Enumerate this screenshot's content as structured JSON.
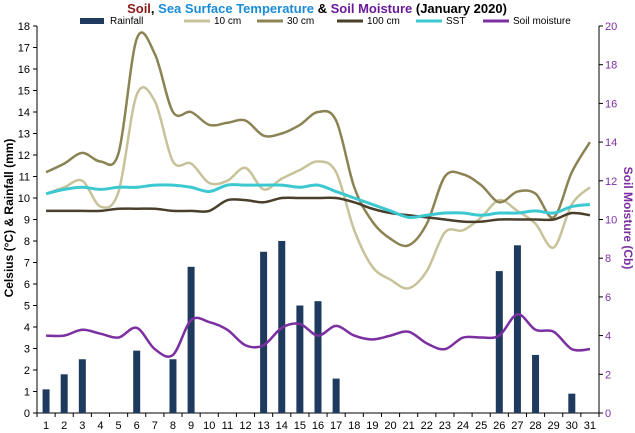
{
  "chart_data": {
    "type": "bar+line",
    "title": {
      "parts": [
        {
          "text": "Soil",
          "color": "#8b1a1a"
        },
        {
          "text": ", ",
          "color": "#000000"
        },
        {
          "text": "Sea Surface Temperature",
          "color": "#1a8cd8"
        },
        {
          "text": " & ",
          "color": "#000000"
        },
        {
          "text": "Soil Moisture",
          "color": "#6a1b9a"
        },
        {
          "text": " (January 2020)",
          "color": "#000000"
        }
      ]
    },
    "xlabel": "",
    "ylabel": "Celsius (°C) & Rainfall (mm)",
    "y2label": "Soil Moisture (Cb)",
    "x": [
      1,
      2,
      3,
      4,
      5,
      6,
      7,
      8,
      9,
      10,
      11,
      12,
      13,
      14,
      15,
      16,
      17,
      18,
      19,
      20,
      21,
      22,
      23,
      24,
      25,
      26,
      27,
      28,
      29,
      30,
      31
    ],
    "ylim": [
      0,
      18
    ],
    "y2lim": [
      0,
      20
    ],
    "yticks": [
      0,
      1,
      2,
      3,
      4,
      5,
      6,
      7,
      8,
      9,
      10,
      11,
      12,
      13,
      14,
      15,
      16,
      17,
      18
    ],
    "y2ticks": [
      0,
      2,
      4,
      6,
      8,
      10,
      12,
      14,
      16,
      18,
      20
    ],
    "grid": false,
    "legend_position": "top",
    "series": [
      {
        "name": "Rainfall",
        "kind": "bar",
        "axis": "left",
        "color": "#1f3a5f",
        "values": [
          1.1,
          1.8,
          2.5,
          0,
          0,
          2.9,
          0,
          2.5,
          6.8,
          0,
          0,
          0,
          7.5,
          8.0,
          5.0,
          5.2,
          1.6,
          0,
          0,
          0,
          0,
          0,
          0,
          0,
          0,
          6.6,
          7.8,
          2.7,
          0,
          0.9,
          0
        ]
      },
      {
        "name": "10 cm",
        "kind": "line",
        "axis": "left",
        "color": "#c8c29a",
        "values": [
          10.2,
          10.5,
          10.8,
          9.6,
          10.3,
          14.8,
          14.5,
          11.7,
          11.6,
          10.7,
          10.8,
          11.4,
          10.4,
          10.9,
          11.3,
          11.7,
          11.2,
          8.5,
          6.8,
          6.2,
          5.8,
          6.6,
          8.4,
          8.5,
          9.1,
          9.9,
          9.4,
          8.8,
          7.7,
          9.7,
          10.5
        ]
      },
      {
        "name": "30 cm",
        "kind": "line",
        "axis": "left",
        "color": "#8b8354",
        "values": [
          11.2,
          11.6,
          12.1,
          11.7,
          12.1,
          17.4,
          16.7,
          14.0,
          14.0,
          13.4,
          13.5,
          13.6,
          12.9,
          13.0,
          13.4,
          14.0,
          13.6,
          10.5,
          8.9,
          8.1,
          7.8,
          8.8,
          11.0,
          11.1,
          10.6,
          9.8,
          10.3,
          10.2,
          9.1,
          11.2,
          12.6
        ]
      },
      {
        "name": "100 cm",
        "kind": "line",
        "axis": "left",
        "color": "#4a3f2a",
        "values": [
          9.4,
          9.4,
          9.4,
          9.4,
          9.5,
          9.5,
          9.5,
          9.4,
          9.4,
          9.4,
          9.9,
          9.9,
          9.8,
          10.0,
          10.0,
          10.0,
          10.0,
          9.8,
          9.5,
          9.3,
          9.2,
          9.1,
          9.0,
          8.9,
          8.9,
          9.0,
          9.0,
          9.0,
          9.0,
          9.3,
          9.2
        ]
      },
      {
        "name": "SST",
        "kind": "line",
        "axis": "left",
        "color": "#3cc8d0",
        "values": [
          10.2,
          10.4,
          10.5,
          10.4,
          10.5,
          10.5,
          10.6,
          10.6,
          10.5,
          10.3,
          10.6,
          10.6,
          10.6,
          10.6,
          10.5,
          10.6,
          10.3,
          10.0,
          9.7,
          9.4,
          9.1,
          9.2,
          9.3,
          9.3,
          9.2,
          9.3,
          9.3,
          9.4,
          9.3,
          9.6,
          9.7
        ]
      },
      {
        "name": "Soil moisture",
        "kind": "line",
        "axis": "right",
        "color": "#7b2fa0",
        "values": [
          4.0,
          4.0,
          4.3,
          4.1,
          3.9,
          4.4,
          3.3,
          3.0,
          4.8,
          4.7,
          4.3,
          3.5,
          3.5,
          4.4,
          4.6,
          4.0,
          4.5,
          4.0,
          3.8,
          4.0,
          4.2,
          3.6,
          3.3,
          3.9,
          3.9,
          4.0,
          5.1,
          4.3,
          4.2,
          3.3,
          3.3
        ]
      }
    ]
  }
}
